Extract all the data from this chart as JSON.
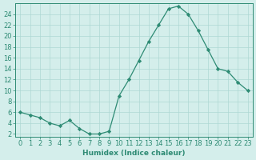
{
  "title": "",
  "xlabel": "Humidex (Indice chaleur)",
  "x": [
    0,
    1,
    2,
    3,
    4,
    5,
    6,
    7,
    8,
    9,
    10,
    11,
    12,
    13,
    14,
    15,
    16,
    17,
    18,
    19,
    20,
    21,
    22,
    23
  ],
  "y": [
    6,
    5.5,
    5,
    4,
    3.5,
    4.5,
    3,
    2,
    2,
    2.5,
    9,
    12,
    15.5,
    19,
    22,
    25,
    25.5,
    24,
    21,
    17.5,
    14,
    13.5,
    11.5,
    10
  ],
  "line_color": "#2e8b74",
  "marker_color": "#2e8b74",
  "bg_color": "#d4eeeb",
  "grid_color": "#aed8d4",
  "axis_color": "#2e8b74",
  "ylim": [
    1.5,
    26
  ],
  "yticks": [
    2,
    4,
    6,
    8,
    10,
    12,
    14,
    16,
    18,
    20,
    22,
    24
  ],
  "tick_label_color": "#2e8b74",
  "xlabel_color": "#2e8b74",
  "label_fontsize": 6.5,
  "tick_fontsize": 6.0
}
